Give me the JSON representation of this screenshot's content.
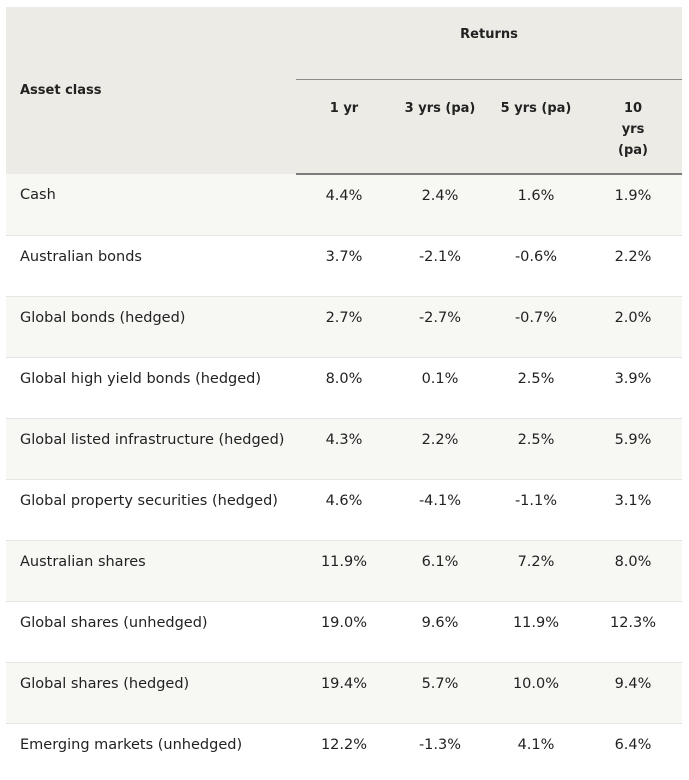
{
  "table": {
    "header": {
      "asset_class": "Asset class",
      "returns": "Returns",
      "periods": [
        "1 yr",
        "3 yrs (pa)",
        "5 yrs (pa)",
        "10 yrs (pa)"
      ]
    },
    "rows": [
      {
        "name": "Cash",
        "values": [
          "4.4%",
          "2.4%",
          "1.6%",
          "1.9%"
        ]
      },
      {
        "name": "Australian bonds",
        "values": [
          "3.7%",
          "-2.1%",
          "-0.6%",
          "2.2%"
        ]
      },
      {
        "name": "Global bonds (hedged)",
        "values": [
          "2.7%",
          "-2.7%",
          "-0.7%",
          "2.0%"
        ]
      },
      {
        "name": "Global high yield bonds (hedged)",
        "values": [
          "8.0%",
          "0.1%",
          "2.5%",
          "3.9%"
        ]
      },
      {
        "name": "Global listed infrastructure (hedged)",
        "values": [
          "4.3%",
          "2.2%",
          "2.5%",
          "5.9%"
        ]
      },
      {
        "name": "Global property securities (hedged)",
        "values": [
          "4.6%",
          "-4.1%",
          "-1.1%",
          "3.1%"
        ]
      },
      {
        "name": "Australian shares",
        "values": [
          "11.9%",
          "6.1%",
          "7.2%",
          "8.0%"
        ]
      },
      {
        "name": "Global shares (unhedged)",
        "values": [
          "19.0%",
          "9.6%",
          "11.9%",
          "12.3%"
        ]
      },
      {
        "name": "Global shares (hedged)",
        "values": [
          "19.4%",
          "5.7%",
          "10.0%",
          "9.4%"
        ]
      },
      {
        "name": "Emerging markets (unhedged)",
        "values": [
          "12.2%",
          "-1.3%",
          "4.1%",
          "6.4%"
        ]
      }
    ]
  },
  "colors": {
    "header_bg": "#ecebe6",
    "row_shade": "#f7f7f4",
    "row_plain": "#ffffff",
    "header_rule": "#7c7c7c"
  }
}
